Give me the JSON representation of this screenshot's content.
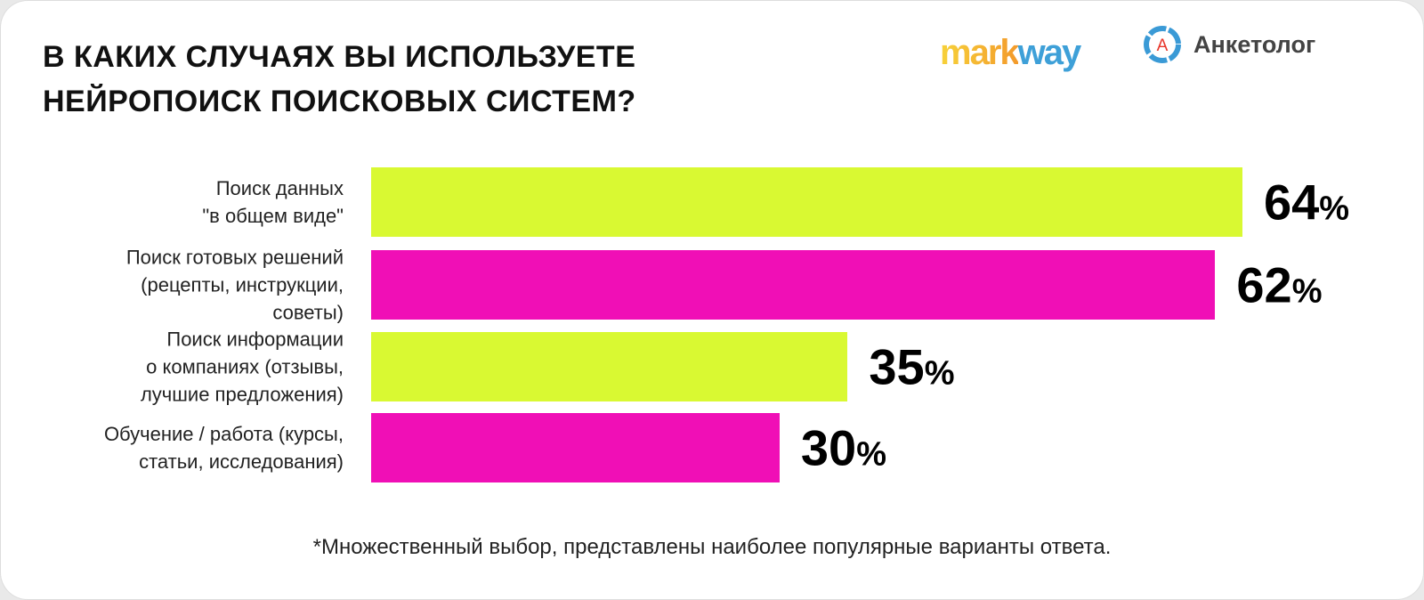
{
  "title_lines": [
    "В КАКИХ СЛУЧАЯХ ВЫ ИСПОЛЬЗУЕТЕ",
    "НЕЙРОПОИСК ПОИСКОВЫХ СИСТЕМ?"
  ],
  "logos": {
    "markway": [
      "mark",
      "way"
    ],
    "anketolog": "Анкетолог",
    "anketolog_letter": "А"
  },
  "colors": {
    "green": "#d9f932",
    "magenta": "#f00fb6"
  },
  "chart_data": {
    "type": "bar",
    "orientation": "horizontal",
    "title": "В КАКИХ СЛУЧАЯХ ВЫ ИСПОЛЬЗУЕТЕ НЕЙРОПОИСК ПОИСКОВЫХ СИСТЕМ?",
    "categories": [
      [
        "Поиск данных",
        "\"в общем виде\""
      ],
      [
        "Поиск готовых решений",
        "(рецепты, инструкции,",
        "советы)"
      ],
      [
        "Поиск информации",
        "о компаниях (отзывы,",
        "лучшие предложения)"
      ],
      [
        "Обучение / работа (курсы,",
        "статьи, исследования)"
      ]
    ],
    "values": [
      64,
      62,
      35,
      30
    ],
    "unit": "%",
    "bar_colors": [
      "#d9f932",
      "#f00fb6",
      "#d9f932",
      "#f00fb6"
    ],
    "xlim": [
      0,
      64
    ]
  },
  "footnote": "*Множественный выбор, представлены наиболее популярные варианты ответа."
}
